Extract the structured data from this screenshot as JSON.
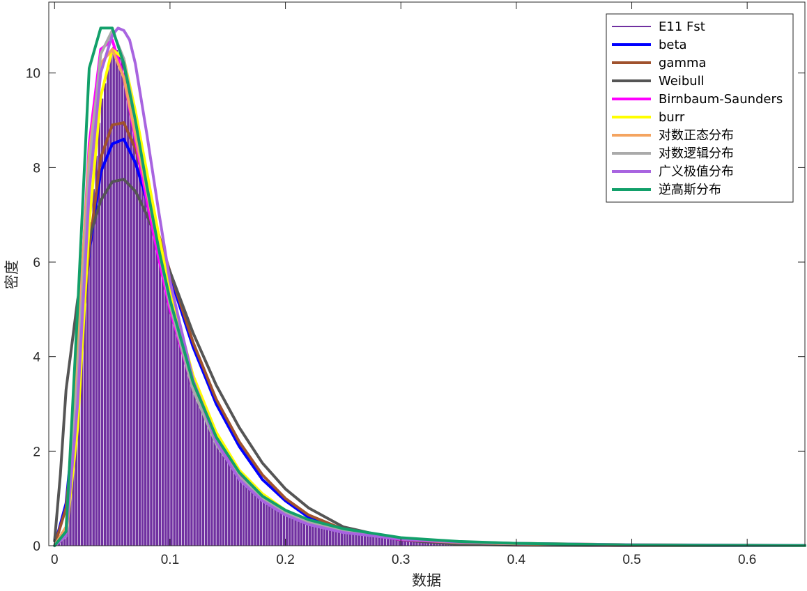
{
  "chart_data": {
    "type": "histogram-with-fits",
    "xlabel": "数据",
    "ylabel": "密度",
    "xlim": [
      -0.005,
      0.65
    ],
    "ylim": [
      0,
      11.5
    ],
    "xticks": [
      0,
      0.1,
      0.2,
      0.3,
      0.4,
      0.5,
      0.6
    ],
    "xtick_labels": [
      "0",
      "0.1",
      "0.2",
      "0.3",
      "0.4",
      "0.5",
      "0.6"
    ],
    "yticks": [
      0,
      2,
      4,
      6,
      8,
      10
    ],
    "ytick_labels": [
      "0",
      "2",
      "4",
      "6",
      "8",
      "10"
    ],
    "legend_location": "top-right",
    "histogram": {
      "name": "E11 Fst",
      "bin_width": 0.0025,
      "fill_color": "#7030a0",
      "edge_color": "#ffffff",
      "density_points": [
        [
          0.0,
          0.1
        ],
        [
          0.01,
          0.4
        ],
        [
          0.02,
          3.0
        ],
        [
          0.03,
          6.5
        ],
        [
          0.04,
          9.3
        ],
        [
          0.05,
          10.6
        ],
        [
          0.06,
          10.3
        ],
        [
          0.07,
          8.8
        ],
        [
          0.08,
          7.3
        ],
        [
          0.09,
          6.1
        ],
        [
          0.1,
          5.0
        ],
        [
          0.12,
          3.4
        ],
        [
          0.14,
          2.3
        ],
        [
          0.16,
          1.5
        ],
        [
          0.18,
          1.0
        ],
        [
          0.2,
          0.7
        ],
        [
          0.22,
          0.5
        ],
        [
          0.25,
          0.3
        ],
        [
          0.3,
          0.15
        ],
        [
          0.35,
          0.08
        ],
        [
          0.4,
          0.05
        ],
        [
          0.5,
          0.02
        ],
        [
          0.6,
          0.01
        ],
        [
          0.65,
          0.0
        ]
      ]
    },
    "series": [
      {
        "name": "beta",
        "color": "#0000ff",
        "points": [
          [
            0,
            0
          ],
          [
            0.01,
            0.9
          ],
          [
            0.02,
            3.4
          ],
          [
            0.03,
            6.2
          ],
          [
            0.04,
            7.9
          ],
          [
            0.05,
            8.5
          ],
          [
            0.06,
            8.6
          ],
          [
            0.07,
            8.1
          ],
          [
            0.08,
            7.3
          ],
          [
            0.09,
            6.5
          ],
          [
            0.1,
            5.7
          ],
          [
            0.12,
            4.2
          ],
          [
            0.14,
            3.0
          ],
          [
            0.16,
            2.1
          ],
          [
            0.18,
            1.4
          ],
          [
            0.2,
            0.95
          ],
          [
            0.22,
            0.6
          ],
          [
            0.25,
            0.33
          ],
          [
            0.3,
            0.13
          ],
          [
            0.35,
            0.05
          ],
          [
            0.4,
            0.02
          ],
          [
            0.5,
            0.005
          ],
          [
            0.65,
            0
          ]
        ]
      },
      {
        "name": "gamma",
        "color": "#a0522d",
        "points": [
          [
            0,
            0
          ],
          [
            0.01,
            0.8
          ],
          [
            0.02,
            3.3
          ],
          [
            0.03,
            6.3
          ],
          [
            0.04,
            8.2
          ],
          [
            0.05,
            8.9
          ],
          [
            0.06,
            8.95
          ],
          [
            0.07,
            8.4
          ],
          [
            0.08,
            7.5
          ],
          [
            0.09,
            6.6
          ],
          [
            0.1,
            5.8
          ],
          [
            0.12,
            4.3
          ],
          [
            0.14,
            3.1
          ],
          [
            0.16,
            2.2
          ],
          [
            0.18,
            1.5
          ],
          [
            0.2,
            1.0
          ],
          [
            0.22,
            0.65
          ],
          [
            0.25,
            0.35
          ],
          [
            0.3,
            0.14
          ],
          [
            0.35,
            0.06
          ],
          [
            0.4,
            0.02
          ],
          [
            0.5,
            0.005
          ],
          [
            0.65,
            0
          ]
        ]
      },
      {
        "name": "Weibull",
        "color": "#555555",
        "points": [
          [
            0,
            0.1
          ],
          [
            0.005,
            1.5
          ],
          [
            0.01,
            3.3
          ],
          [
            0.02,
            5.2
          ],
          [
            0.03,
            6.5
          ],
          [
            0.04,
            7.3
          ],
          [
            0.05,
            7.7
          ],
          [
            0.06,
            7.75
          ],
          [
            0.07,
            7.5
          ],
          [
            0.08,
            7.0
          ],
          [
            0.09,
            6.4
          ],
          [
            0.1,
            5.8
          ],
          [
            0.12,
            4.5
          ],
          [
            0.14,
            3.4
          ],
          [
            0.16,
            2.5
          ],
          [
            0.18,
            1.75
          ],
          [
            0.2,
            1.2
          ],
          [
            0.22,
            0.8
          ],
          [
            0.25,
            0.4
          ],
          [
            0.3,
            0.12
          ],
          [
            0.35,
            0.03
          ],
          [
            0.4,
            0.01
          ],
          [
            0.5,
            0
          ],
          [
            0.65,
            0
          ]
        ]
      },
      {
        "name": "Birnbaum-Saunders",
        "color": "#ff00ff",
        "points": [
          [
            0,
            0
          ],
          [
            0.01,
            0.3
          ],
          [
            0.02,
            4.0
          ],
          [
            0.03,
            8.5
          ],
          [
            0.04,
            10.5
          ],
          [
            0.05,
            10.7
          ],
          [
            0.06,
            9.9
          ],
          [
            0.07,
            8.6
          ],
          [
            0.08,
            7.3
          ],
          [
            0.09,
            6.1
          ],
          [
            0.1,
            5.0
          ],
          [
            0.12,
            3.3
          ],
          [
            0.14,
            2.2
          ],
          [
            0.16,
            1.5
          ],
          [
            0.18,
            1.0
          ],
          [
            0.2,
            0.7
          ],
          [
            0.22,
            0.5
          ],
          [
            0.25,
            0.3
          ],
          [
            0.3,
            0.13
          ],
          [
            0.35,
            0.07
          ],
          [
            0.4,
            0.04
          ],
          [
            0.5,
            0.01
          ],
          [
            0.65,
            0
          ]
        ]
      },
      {
        "name": "burr",
        "color": "#ffff00",
        "points": [
          [
            0,
            0
          ],
          [
            0.01,
            0.2
          ],
          [
            0.02,
            2.5
          ],
          [
            0.03,
            6.8
          ],
          [
            0.04,
            9.5
          ],
          [
            0.05,
            10.5
          ],
          [
            0.06,
            10.3
          ],
          [
            0.07,
            9.2
          ],
          [
            0.08,
            7.9
          ],
          [
            0.09,
            6.6
          ],
          [
            0.1,
            5.4
          ],
          [
            0.12,
            3.6
          ],
          [
            0.14,
            2.4
          ],
          [
            0.16,
            1.6
          ],
          [
            0.18,
            1.1
          ],
          [
            0.2,
            0.75
          ],
          [
            0.22,
            0.52
          ],
          [
            0.25,
            0.32
          ],
          [
            0.3,
            0.15
          ],
          [
            0.35,
            0.08
          ],
          [
            0.4,
            0.05
          ],
          [
            0.5,
            0.02
          ],
          [
            0.65,
            0.005
          ]
        ]
      },
      {
        "name": "对数正态分布",
        "color": "#f4a460",
        "points": [
          [
            0,
            0
          ],
          [
            0.01,
            0.4
          ],
          [
            0.02,
            4.2
          ],
          [
            0.03,
            8.3
          ],
          [
            0.04,
            10.2
          ],
          [
            0.05,
            10.5
          ],
          [
            0.06,
            9.9
          ],
          [
            0.07,
            8.7
          ],
          [
            0.08,
            7.5
          ],
          [
            0.09,
            6.3
          ],
          [
            0.1,
            5.2
          ],
          [
            0.12,
            3.5
          ],
          [
            0.14,
            2.3
          ],
          [
            0.16,
            1.55
          ],
          [
            0.18,
            1.05
          ],
          [
            0.2,
            0.72
          ],
          [
            0.22,
            0.5
          ],
          [
            0.25,
            0.3
          ],
          [
            0.3,
            0.14
          ],
          [
            0.35,
            0.07
          ],
          [
            0.4,
            0.04
          ],
          [
            0.5,
            0.012
          ],
          [
            0.65,
            0.003
          ]
        ]
      },
      {
        "name": "对数逻辑分布",
        "color": "#aaaaaa",
        "points": [
          [
            0,
            0
          ],
          [
            0.01,
            0.3
          ],
          [
            0.02,
            3.5
          ],
          [
            0.03,
            8.0
          ],
          [
            0.04,
            10.4
          ],
          [
            0.05,
            10.9
          ],
          [
            0.06,
            10.3
          ],
          [
            0.07,
            9.0
          ],
          [
            0.08,
            7.6
          ],
          [
            0.09,
            6.3
          ],
          [
            0.1,
            5.1
          ],
          [
            0.12,
            3.3
          ],
          [
            0.14,
            2.15
          ],
          [
            0.16,
            1.45
          ],
          [
            0.18,
            1.0
          ],
          [
            0.2,
            0.7
          ],
          [
            0.22,
            0.5
          ],
          [
            0.25,
            0.31
          ],
          [
            0.3,
            0.15
          ],
          [
            0.35,
            0.08
          ],
          [
            0.4,
            0.05
          ],
          [
            0.5,
            0.02
          ],
          [
            0.65,
            0.005
          ]
        ]
      },
      {
        "name": "广义极值分布",
        "color": "#a864e0",
        "points": [
          [
            0,
            0
          ],
          [
            0.01,
            0.2
          ],
          [
            0.02,
            3.0
          ],
          [
            0.03,
            7.5
          ],
          [
            0.04,
            10.0
          ],
          [
            0.05,
            10.8
          ],
          [
            0.055,
            10.95
          ],
          [
            0.06,
            10.9
          ],
          [
            0.065,
            10.7
          ],
          [
            0.07,
            10.2
          ],
          [
            0.08,
            8.7
          ],
          [
            0.09,
            7.1
          ],
          [
            0.1,
            5.6
          ],
          [
            0.12,
            3.5
          ],
          [
            0.14,
            2.2
          ],
          [
            0.16,
            1.4
          ],
          [
            0.18,
            0.95
          ],
          [
            0.2,
            0.65
          ],
          [
            0.22,
            0.45
          ],
          [
            0.25,
            0.28
          ],
          [
            0.3,
            0.14
          ],
          [
            0.35,
            0.08
          ],
          [
            0.4,
            0.05
          ],
          [
            0.5,
            0.02
          ],
          [
            0.65,
            0.007
          ]
        ]
      },
      {
        "name": "逆高斯分布",
        "color": "#12a06a",
        "points": [
          [
            0,
            0
          ],
          [
            0.01,
            0.3
          ],
          [
            0.02,
            5.0
          ],
          [
            0.03,
            10.1
          ],
          [
            0.04,
            10.95
          ],
          [
            0.05,
            10.95
          ],
          [
            0.06,
            10.2
          ],
          [
            0.07,
            9.0
          ],
          [
            0.08,
            7.6
          ],
          [
            0.09,
            6.3
          ],
          [
            0.1,
            5.2
          ],
          [
            0.12,
            3.45
          ],
          [
            0.14,
            2.3
          ],
          [
            0.16,
            1.55
          ],
          [
            0.18,
            1.05
          ],
          [
            0.2,
            0.75
          ],
          [
            0.22,
            0.55
          ],
          [
            0.25,
            0.36
          ],
          [
            0.3,
            0.17
          ],
          [
            0.35,
            0.09
          ],
          [
            0.4,
            0.05
          ],
          [
            0.5,
            0.015
          ],
          [
            0.65,
            0.003
          ]
        ]
      }
    ]
  }
}
